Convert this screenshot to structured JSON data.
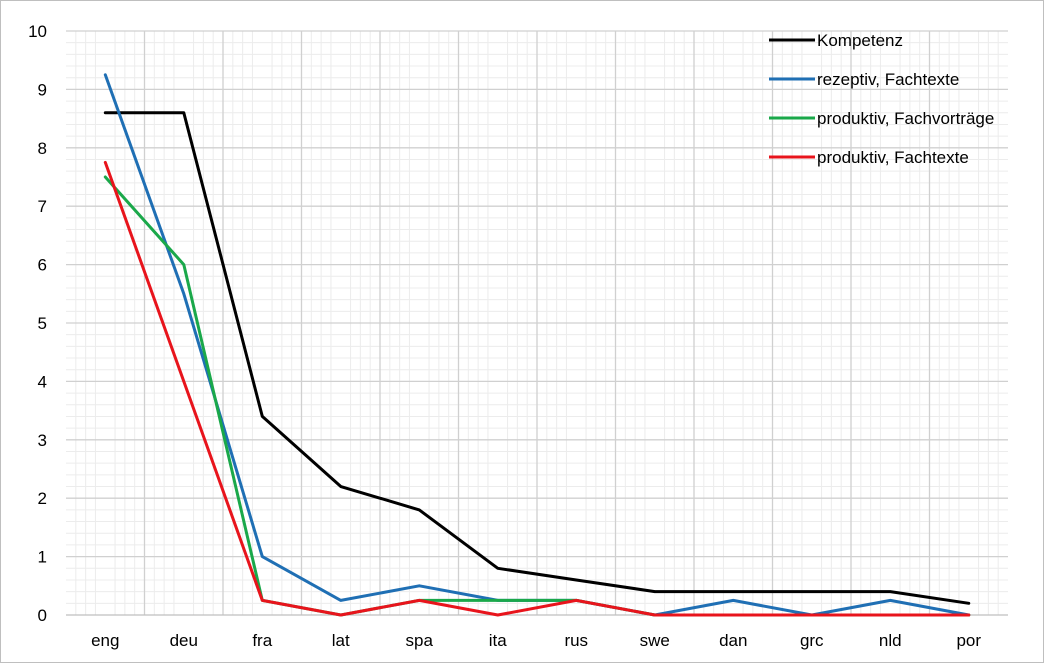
{
  "chart_data": {
    "type": "line",
    "categories": [
      "eng",
      "deu",
      "fra",
      "lat",
      "spa",
      "ita",
      "rus",
      "swe",
      "dan",
      "grc",
      "nld",
      "por"
    ],
    "ylim": [
      0,
      10
    ],
    "yticks": [
      "0",
      "1",
      "2",
      "3",
      "4",
      "5",
      "6",
      "7",
      "8",
      "9",
      "10"
    ],
    "grid": true,
    "legend_position": "top-right",
    "series": [
      {
        "name": "Kompetenz",
        "color": "#000000",
        "values": [
          8.6,
          8.6,
          3.4,
          2.2,
          1.8,
          0.8,
          0.6,
          0.4,
          0.4,
          0.4,
          0.4,
          0.2
        ]
      },
      {
        "name": "rezeptiv, Fachtexte",
        "color": "#1f6fb4",
        "values": [
          9.25,
          5.5,
          1.0,
          0.25,
          0.5,
          0.25,
          0.25,
          0.0,
          0.25,
          0.0,
          0.25,
          0.0
        ]
      },
      {
        "name": "produktiv, Fachvorträge",
        "color": "#1aa84a",
        "values": [
          7.5,
          6.0,
          0.25,
          0.0,
          0.25,
          0.25,
          0.25,
          0.0,
          0.0,
          0.0,
          0.0,
          0.0
        ]
      },
      {
        "name": "produktiv, Fachtexte",
        "color": "#e8141c",
        "values": [
          7.75,
          4.0,
          0.25,
          0.0,
          0.25,
          0.0,
          0.25,
          0.0,
          0.0,
          0.0,
          0.0,
          0.0
        ]
      }
    ]
  }
}
